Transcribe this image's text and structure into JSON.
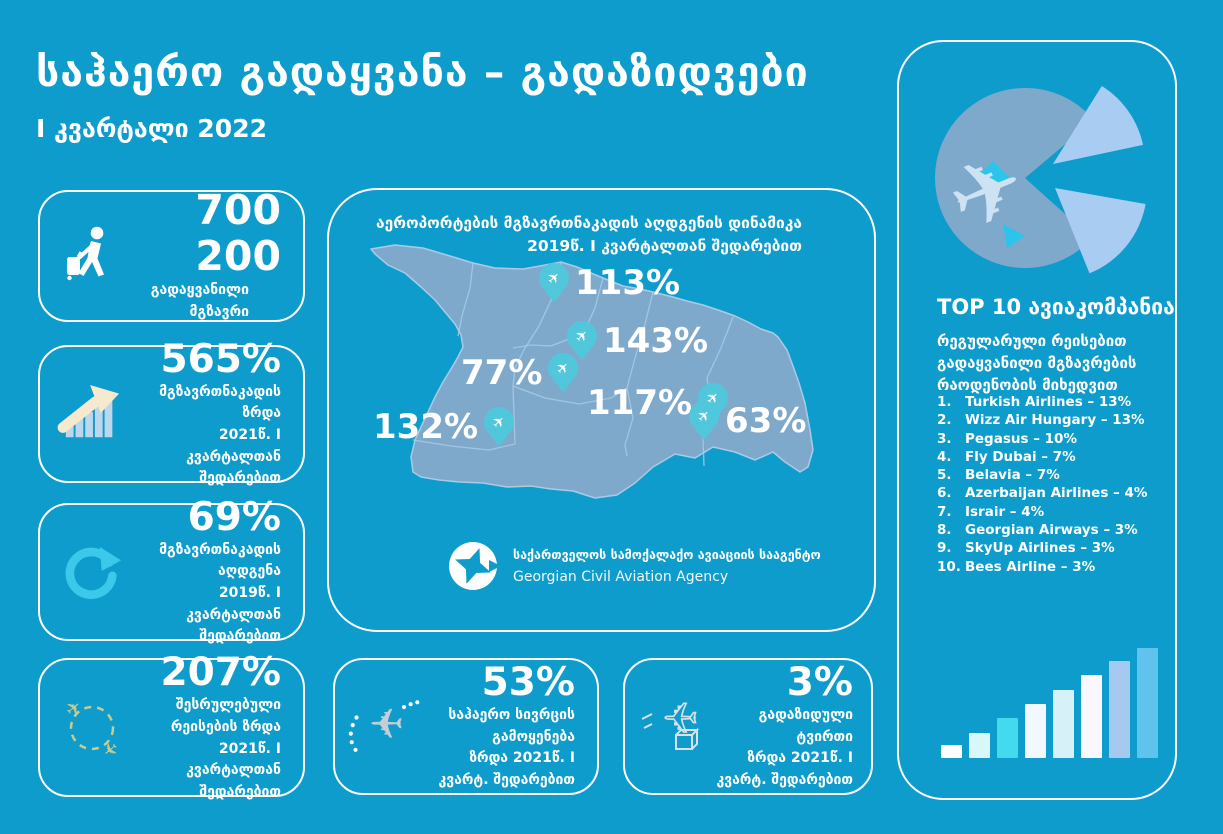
{
  "page": {
    "title": "საჰაერო გადაყვანა – გადაზიდვები",
    "subtitle": "I კვარტალი 2022"
  },
  "colors": {
    "background": "#0D9CCB",
    "card_border": "#FFFFFF",
    "map_fill": "#7FA9CB",
    "map_stroke": "#A9CBE6",
    "pin": "#4FC8DC",
    "accent_cyan": "#3CC8E9",
    "arrow_cream": "#F6E9CE",
    "olive": "#C9CC8F",
    "pie_main": "#7FA9CB",
    "pie_slice": "#A9CDF2"
  },
  "icons": {
    "airplane_glyph": "✈"
  },
  "stat_cards": [
    {
      "value": "700 200",
      "line1": "გადაყვანილი მგზავრი"
    },
    {
      "value": "565%",
      "line1": "მგზავრთნაკადის ზრდა",
      "line2": "2021წ. I კვარტალთან შედარებით"
    },
    {
      "value": "69%",
      "line1": "მგზავრთნაკადის აღდგენა",
      "line2": "2019წ. I კვარტალთან შედარებით"
    },
    {
      "value": "207%",
      "line1": "შესრულებული რეისების ზრდა",
      "line2": "2021წ. I კვარტალთან შედარებით"
    }
  ],
  "map_panel": {
    "title_line1": "აეროპორტების მგზავრთნაკადის აღდგენის დინამიკა",
    "title_line2": "2019წ. I კვარტალთან შედარებით",
    "markers": [
      {
        "value": "113%"
      },
      {
        "value": "143%"
      },
      {
        "value": "77%"
      },
      {
        "value": "132%"
      },
      {
        "value": "117%"
      },
      {
        "value": "63%"
      }
    ],
    "logo_name_ka": "საქართველოს სამოქალაქო ავიაციის სააგენტო",
    "logo_name_en": "Georgian Civil Aviation Agency"
  },
  "bottom_cards": [
    {
      "value": "53%",
      "line1": "საჰაერო სივრცის გამოყენება",
      "line2": "ზრდა 2021წ. I კვარტ. შედარებით"
    },
    {
      "value": "3%",
      "line1": "გადაზიდული ტვირთი",
      "line2": "ზრდა 2021წ. I კვარტ. შედარებით"
    }
  ],
  "top10": {
    "heading": "TOP 10 ავიაკომპანია",
    "subtitle_line1": "რეგულარული რეისებით",
    "subtitle_line2": "გადაყვანილი მგზავრების",
    "subtitle_line3": "რაოდენობის მიხედვით",
    "airlines": [
      {
        "num": "1.",
        "label": "Turkish Airlines – 13%"
      },
      {
        "num": "2.",
        "label": "Wizz Air Hungary – 13%"
      },
      {
        "num": "3.",
        "label": "Pegasus – 10%"
      },
      {
        "num": "4.",
        "label": "Fly Dubai – 7%"
      },
      {
        "num": "5.",
        "label": "Belavia – 7%"
      },
      {
        "num": "6.",
        "label": "Azerbaijan Airlines – 4%"
      },
      {
        "num": "7.",
        "label": "Israir – 4%"
      },
      {
        "num": "8.",
        "label": "Georgian Airways – 3%"
      },
      {
        "num": "9.",
        "label": "SkyUp Airlines – 3%"
      },
      {
        "num": "10.",
        "label": "Bees Airline – 3%"
      }
    ]
  },
  "chart_data": [
    {
      "id": "airport-recovery",
      "type": "table",
      "title": "აეროპორტების მგზავრთნაკადის აღდგენის დინამიკა 2019წ. I კვარტალთან შედარებით",
      "values": [
        113,
        143,
        77,
        132,
        117,
        63
      ],
      "unit": "%"
    },
    {
      "id": "top10-airlines",
      "type": "table",
      "title": "TOP 10 ავიაკომპანია",
      "categories": [
        "Turkish Airlines",
        "Wizz Air Hungary",
        "Pegasus",
        "Fly Dubai",
        "Belavia",
        "Azerbaijan Airlines",
        "Israir",
        "Georgian Airways",
        "SkyUp Airlines",
        "Bees Airline"
      ],
      "values": [
        13,
        13,
        10,
        7,
        7,
        4,
        4,
        3,
        3,
        3
      ],
      "unit": "%"
    },
    {
      "id": "growth-bars",
      "type": "bar",
      "title": "",
      "values": [
        13,
        25,
        40,
        54,
        68,
        83,
        97,
        110
      ],
      "colors": [
        "#FFFFFF",
        "#D9F6F9",
        "#43DAEE",
        "#F2F8FD",
        "#D7F1F8",
        "#FBF7FE",
        "#A6C9EF",
        "#5FC3EE"
      ]
    }
  ]
}
